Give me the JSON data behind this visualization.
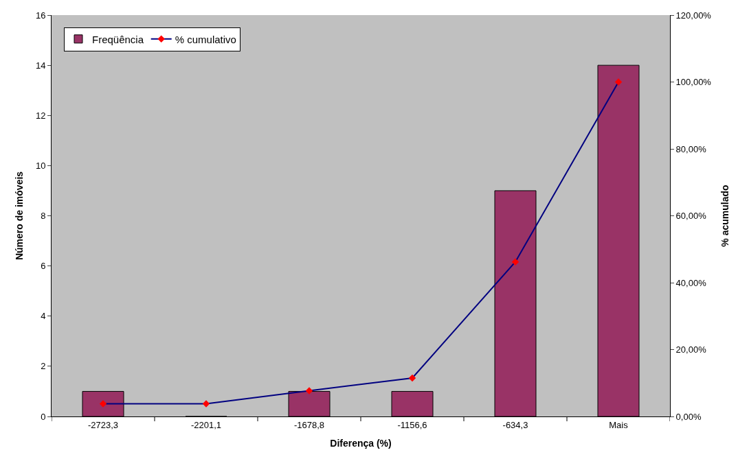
{
  "chart_data": {
    "type": "bar",
    "xlabel": "Diferença (%)",
    "ylabel": "Número de imóveis",
    "y2label": "% acumulado",
    "categories": [
      "-2723,3",
      "-2201,1",
      "-1678,8",
      "-1156,6",
      "-634,3",
      "Mais"
    ],
    "series": [
      {
        "name": "Freqüência",
        "color": "#993366",
        "values": [
          1,
          0,
          1,
          1,
          9,
          14
        ]
      },
      {
        "name": "% cumulativo",
        "type": "line",
        "axis": "y2",
        "color": "#000080",
        "colors": [
          "#ff0000",
          "#ff0000",
          "#ff0000",
          "#ff0000",
          "#ff0000",
          "#ff0000"
        ],
        "marker": "diamond",
        "values": [
          3.8,
          3.8,
          7.7,
          11.5,
          46.2,
          100
        ]
      }
    ],
    "ylim": [
      0,
      16
    ],
    "yticks": [
      0,
      2,
      4,
      6,
      8,
      10,
      12,
      14,
      16
    ],
    "y2lim": [
      0,
      120
    ],
    "y2ticks": [
      {
        "value": 0,
        "label": "0,00%"
      },
      {
        "value": 20,
        "label": "20,00%"
      },
      {
        "value": 40,
        "label": "40,00%"
      },
      {
        "value": 60,
        "label": "60,00%"
      },
      {
        "value": 80,
        "label": "80,00%"
      },
      {
        "value": 100,
        "label": "100,00%"
      },
      {
        "value": 120,
        "label": "120,00%"
      }
    ],
    "grid": false,
    "legend": "top left"
  }
}
